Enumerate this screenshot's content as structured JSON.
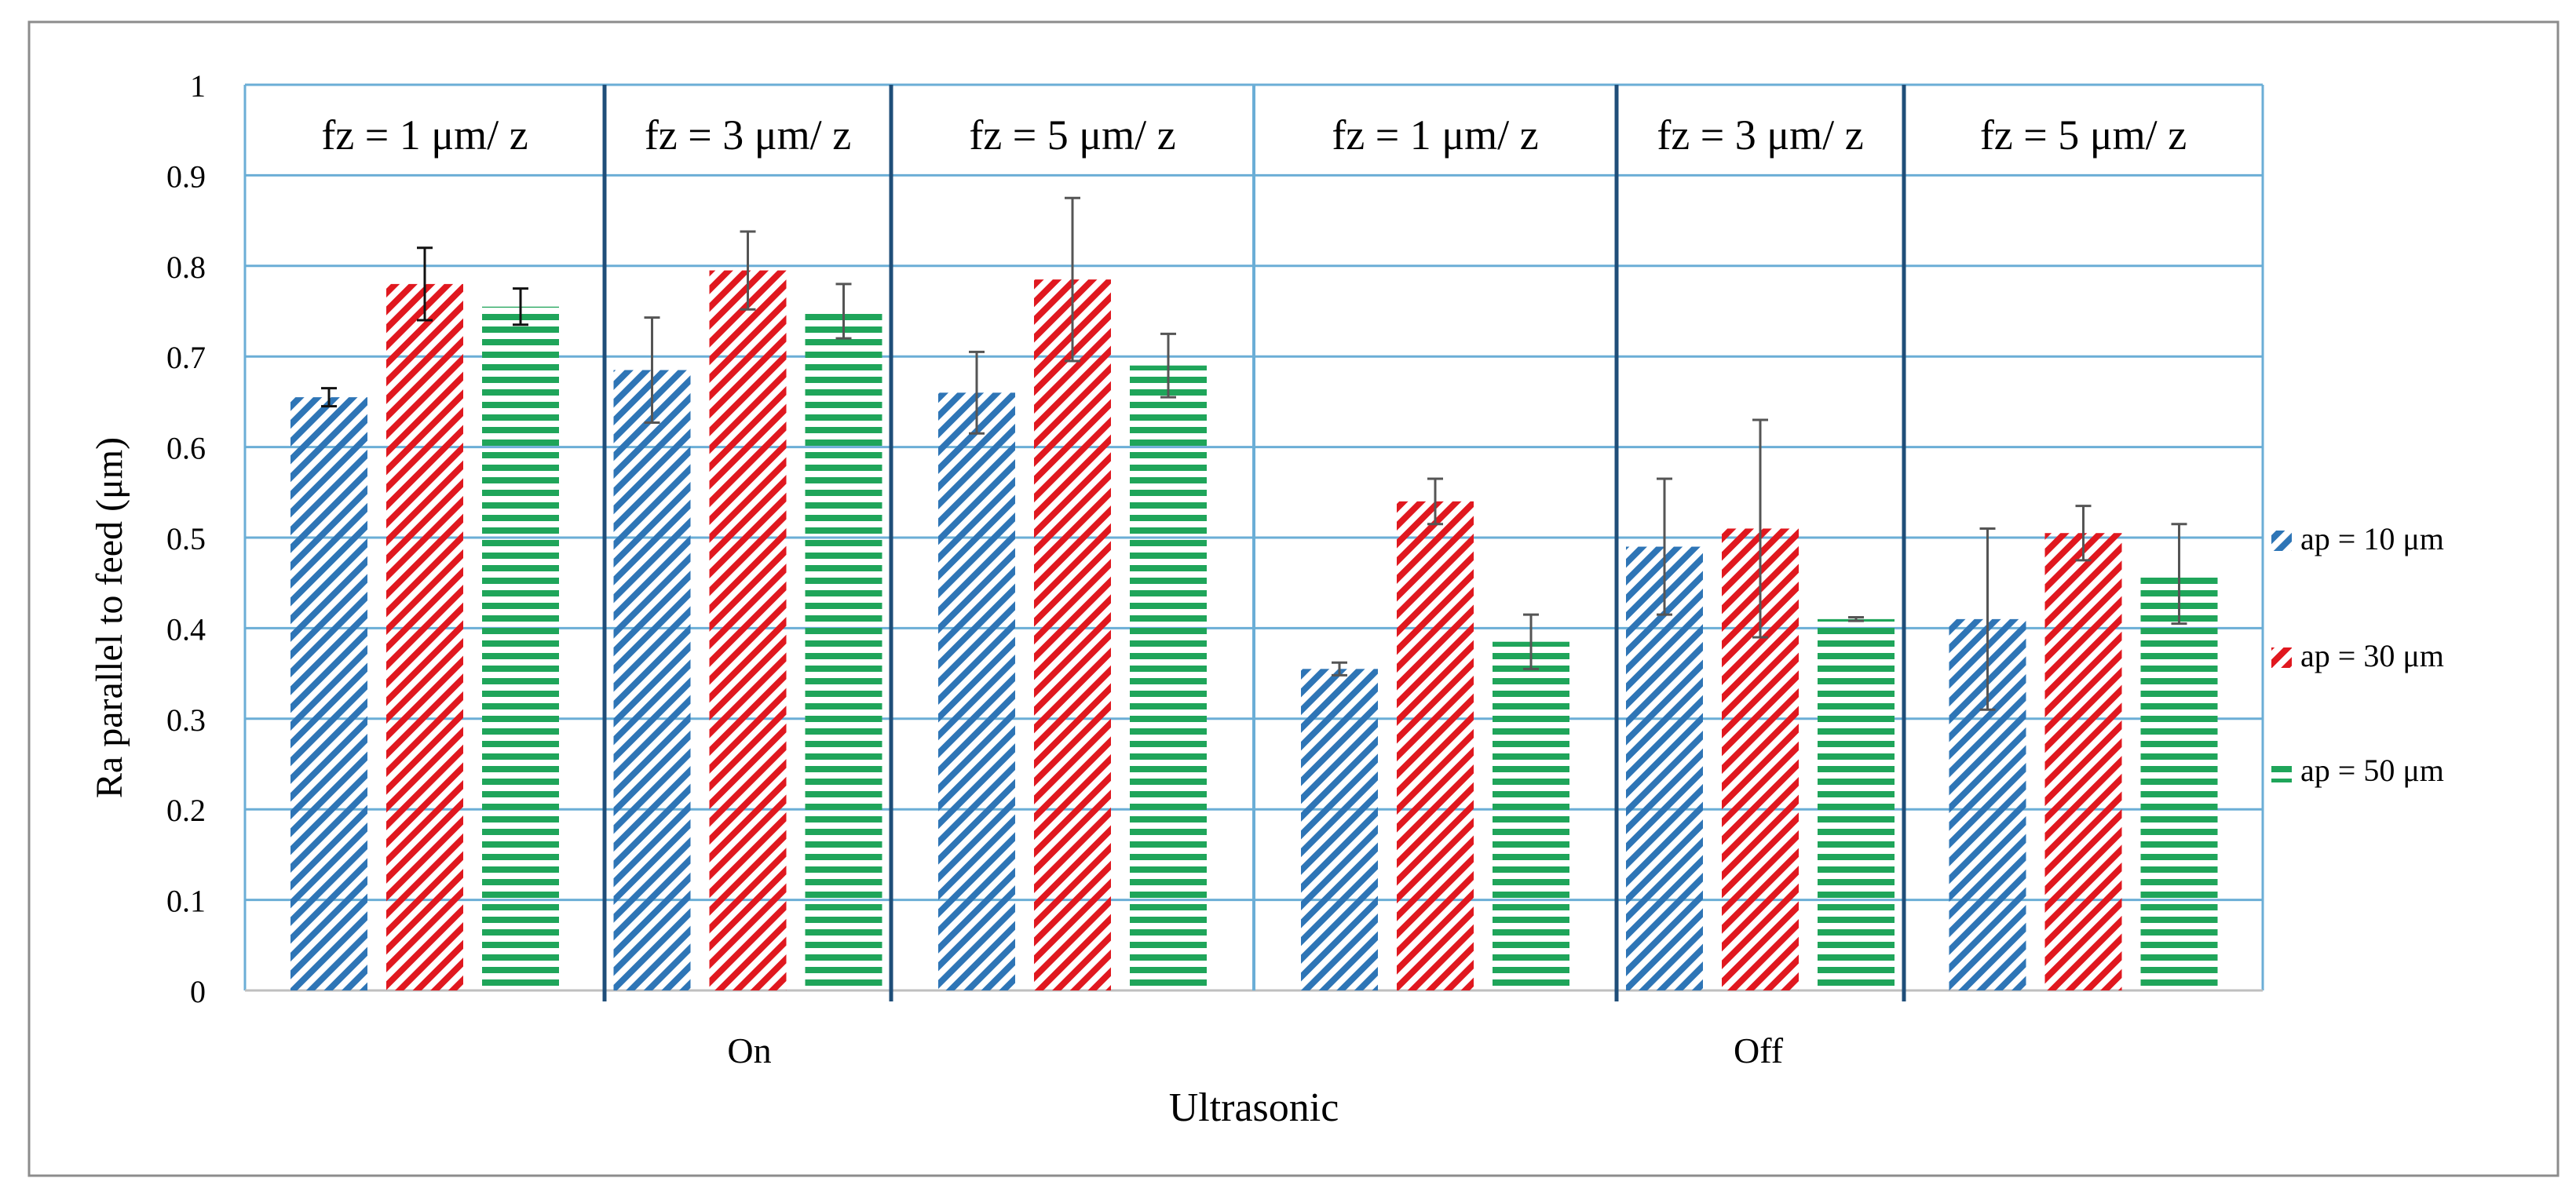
{
  "chart_data": {
    "type": "bar",
    "xlabel": "Ultrasonic",
    "ylabel": "Ra parallel to feed (μm)",
    "ylim": [
      0,
      1
    ],
    "yticks": [
      "0",
      "0.1",
      "0.2",
      "0.3",
      "0.4",
      "0.5",
      "0.6",
      "0.7",
      "0.8",
      "0.9",
      "1"
    ],
    "grid": true,
    "legend_position": "right",
    "groups": [
      {
        "label": "On",
        "subgroups": [
          {
            "label": "fz = 1 μm/ z",
            "values": [
              0.655,
              0.78,
              0.755
            ],
            "errors": [
              0.01,
              0.04,
              0.02
            ]
          },
          {
            "label": "fz = 3 μm/ z",
            "values": [
              0.685,
              0.795,
              0.75
            ],
            "errors": [
              0.058,
              0.043,
              0.03
            ]
          },
          {
            "label": "fz = 5 μm/ z",
            "values": [
              0.66,
              0.785,
              0.69
            ],
            "errors": [
              0.045,
              0.09,
              0.035
            ]
          }
        ]
      },
      {
        "label": "Off",
        "subgroups": [
          {
            "label": "fz = 1 μm/ z",
            "values": [
              0.355,
              0.54,
              0.385
            ],
            "errors": [
              0.007,
              0.025,
              0.03
            ]
          },
          {
            "label": "fz = 3 μm/ z",
            "values": [
              0.49,
              0.51,
              0.41
            ],
            "errors": [
              0.075,
              0.12,
              0.002
            ]
          },
          {
            "label": "fz = 5 μm/ z",
            "values": [
              0.41,
              0.505,
              0.46
            ],
            "errors": [
              0.1,
              0.03,
              0.055
            ]
          }
        ]
      }
    ],
    "series": [
      {
        "name": "ap = 10 μm",
        "color": "#2e75b6",
        "pattern": "diagonal"
      },
      {
        "name": "ap = 30 μm",
        "color": "#e0181f",
        "pattern": "diagonal"
      },
      {
        "name": "ap = 50 μm",
        "color": "#1fa55a",
        "pattern": "horizontal"
      }
    ]
  },
  "colors": {
    "grid": "#6baed6",
    "divider_thick": "#1f4e79",
    "frame": "#8c8c8c"
  }
}
